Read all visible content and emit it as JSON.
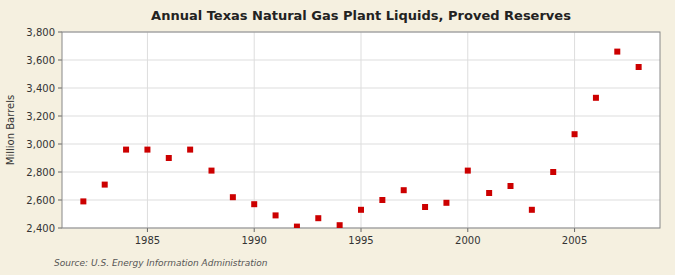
{
  "chart_data": {
    "type": "scatter",
    "title": "Annual Texas Natural Gas Plant Liquids, Proved Reserves",
    "ylabel": "Million Barrels",
    "source": "Source: U.S. Energy Information Administration",
    "x": [
      1982,
      1983,
      1984,
      1985,
      1986,
      1987,
      1988,
      1989,
      1990,
      1991,
      1992,
      1993,
      1994,
      1995,
      1996,
      1997,
      1998,
      1999,
      2000,
      2001,
      2002,
      2003,
      2004,
      2005,
      2006,
      2007,
      2008
    ],
    "values": [
      2590,
      2710,
      2960,
      2960,
      2900,
      2960,
      2810,
      2620,
      2570,
      2490,
      2410,
      2470,
      2420,
      2530,
      2600,
      2670,
      2550,
      2580,
      2810,
      2650,
      2700,
      2530,
      2800,
      3070,
      3330,
      3660,
      3550
    ],
    "color": "#cc0000",
    "marker": "square",
    "xlim": [
      1981,
      2009
    ],
    "ylim": [
      2400,
      3800
    ],
    "xticks": [
      1985,
      1990,
      1995,
      2000,
      2005
    ],
    "yticks": [
      {
        "value": 2400,
        "label": "2,400"
      },
      {
        "value": 2600,
        "label": "2,600"
      },
      {
        "value": 2800,
        "label": "2,800"
      },
      {
        "value": 3000,
        "label": "3,000"
      },
      {
        "value": 3200,
        "label": "3,200"
      },
      {
        "value": 3400,
        "label": "3,400"
      },
      {
        "value": 3600,
        "label": "3,600"
      },
      {
        "value": 3800,
        "label": "3,800"
      }
    ],
    "grid": true
  }
}
